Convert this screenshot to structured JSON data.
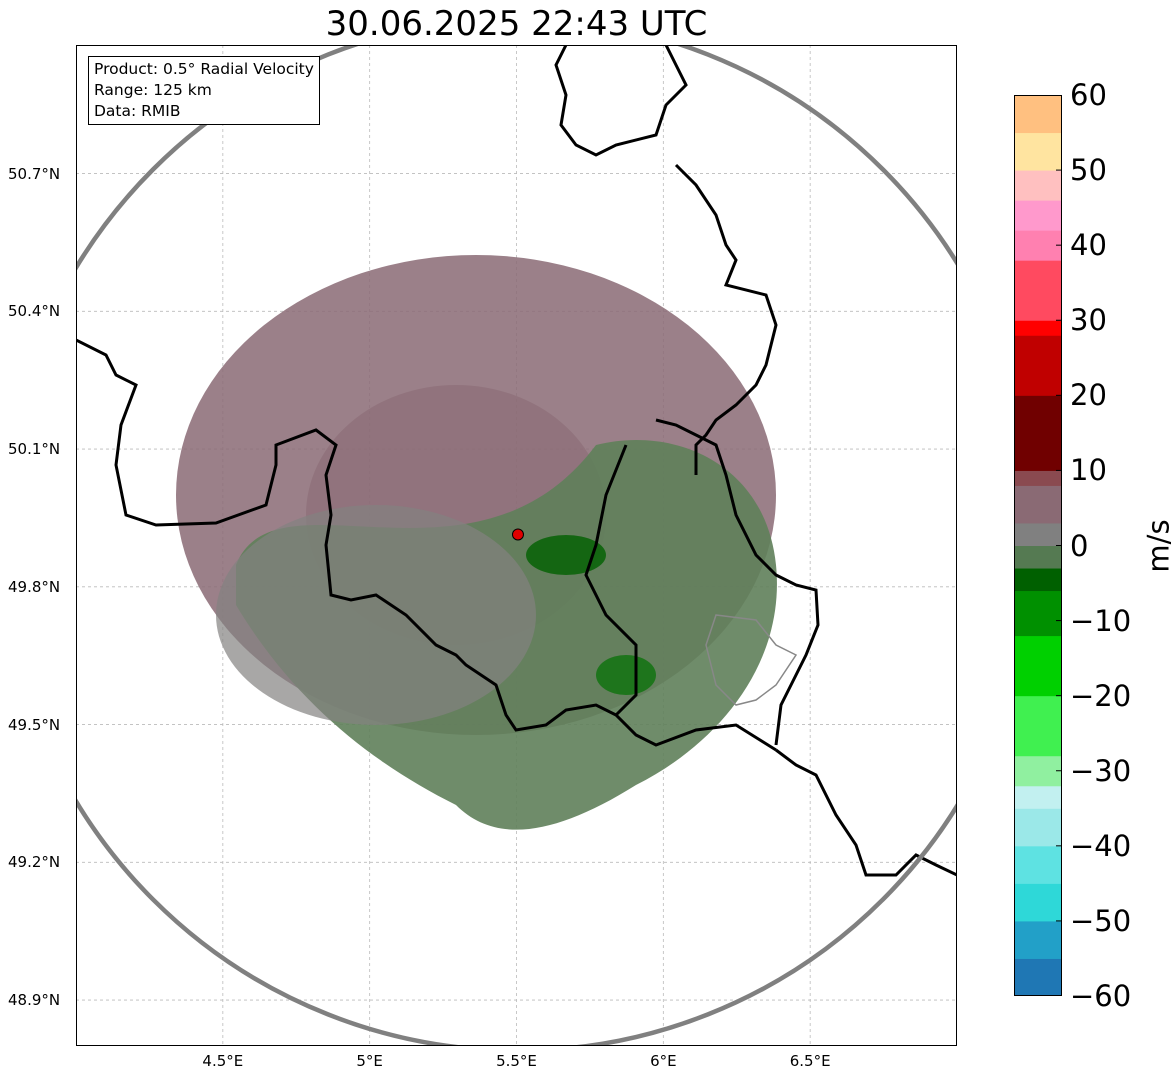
{
  "title": "30.06.2025 22:43 UTC",
  "infobox": {
    "product": "Product: 0.5° Radial Velocity",
    "range": "Range: 125 km",
    "source": "Data: RMIB"
  },
  "map": {
    "lon_range": [
      4.0,
      7.0
    ],
    "lat_range": [
      48.8,
      50.98
    ],
    "radar_site": {
      "lon": 5.505,
      "lat": 49.914
    },
    "range_km": 125,
    "lat_ticks": [
      {
        "value": 48.9,
        "label": "48.9°N"
      },
      {
        "value": 49.2,
        "label": "49.2°N"
      },
      {
        "value": 49.5,
        "label": "49.5°N"
      },
      {
        "value": 49.8,
        "label": "49.8°N"
      },
      {
        "value": 50.1,
        "label": "50.1°N"
      },
      {
        "value": 50.4,
        "label": "50.4°N"
      },
      {
        "value": 50.7,
        "label": "50.7°N"
      }
    ],
    "lon_ticks": [
      {
        "value": 4.5,
        "label": "4.5°E"
      },
      {
        "value": 5.0,
        "label": "5°E"
      },
      {
        "value": 5.5,
        "label": "5.5°E"
      },
      {
        "value": 6.0,
        "label": "6°E"
      },
      {
        "value": 6.5,
        "label": "6.5°E"
      }
    ],
    "grid": true,
    "colors": {
      "range_ring": "#808080",
      "border": "#000000",
      "grid": "#bbbbbb",
      "receding": "#8a6a74",
      "approaching": "#5f7f5a",
      "radar_marker": "#e00000"
    }
  },
  "colorbar": {
    "unit": "m/s",
    "min": -60,
    "max": 60,
    "ticks": [
      {
        "value": 60,
        "label": "60"
      },
      {
        "value": 50,
        "label": "50"
      },
      {
        "value": 40,
        "label": "40"
      },
      {
        "value": 30,
        "label": "30"
      },
      {
        "value": 20,
        "label": "20"
      },
      {
        "value": 10,
        "label": "10"
      },
      {
        "value": 0,
        "label": "0"
      },
      {
        "value": -10,
        "label": "−10"
      },
      {
        "value": -20,
        "label": "−20"
      },
      {
        "value": -30,
        "label": "−30"
      },
      {
        "value": -40,
        "label": "−40"
      },
      {
        "value": -50,
        "label": "−50"
      },
      {
        "value": -60,
        "label": "−60"
      }
    ],
    "stops": [
      {
        "value": -60,
        "color": "#1f77b4"
      },
      {
        "value": -55,
        "color": "#22a0c8"
      },
      {
        "value": -50,
        "color": "#2ed8d8"
      },
      {
        "value": -45,
        "color": "#5ee2e2"
      },
      {
        "value": -40,
        "color": "#9be8e8"
      },
      {
        "value": -35,
        "color": "#c2f0f0"
      },
      {
        "value": -32,
        "color": "#90f0a0"
      },
      {
        "value": -28,
        "color": "#40f050"
      },
      {
        "value": -20,
        "color": "#00d000"
      },
      {
        "value": -12,
        "color": "#009000"
      },
      {
        "value": -6,
        "color": "#006000"
      },
      {
        "value": -3,
        "color": "#557a52"
      },
      {
        "value": 0,
        "color": "#808080"
      },
      {
        "value": 3,
        "color": "#8a6a74"
      },
      {
        "value": 8,
        "color": "#8a4a50"
      },
      {
        "value": 10,
        "color": "#700000"
      },
      {
        "value": 20,
        "color": "#c00000"
      },
      {
        "value": 28,
        "color": "#ff0000"
      },
      {
        "value": 30,
        "color": "#ff4a60"
      },
      {
        "value": 38,
        "color": "#ff80b0"
      },
      {
        "value": 42,
        "color": "#ff99cc"
      },
      {
        "value": 46,
        "color": "#ffc0c0"
      },
      {
        "value": 50,
        "color": "#ffe4a0"
      },
      {
        "value": 55,
        "color": "#ffc080"
      },
      {
        "value": 60,
        "color": "#ffa060"
      }
    ]
  }
}
